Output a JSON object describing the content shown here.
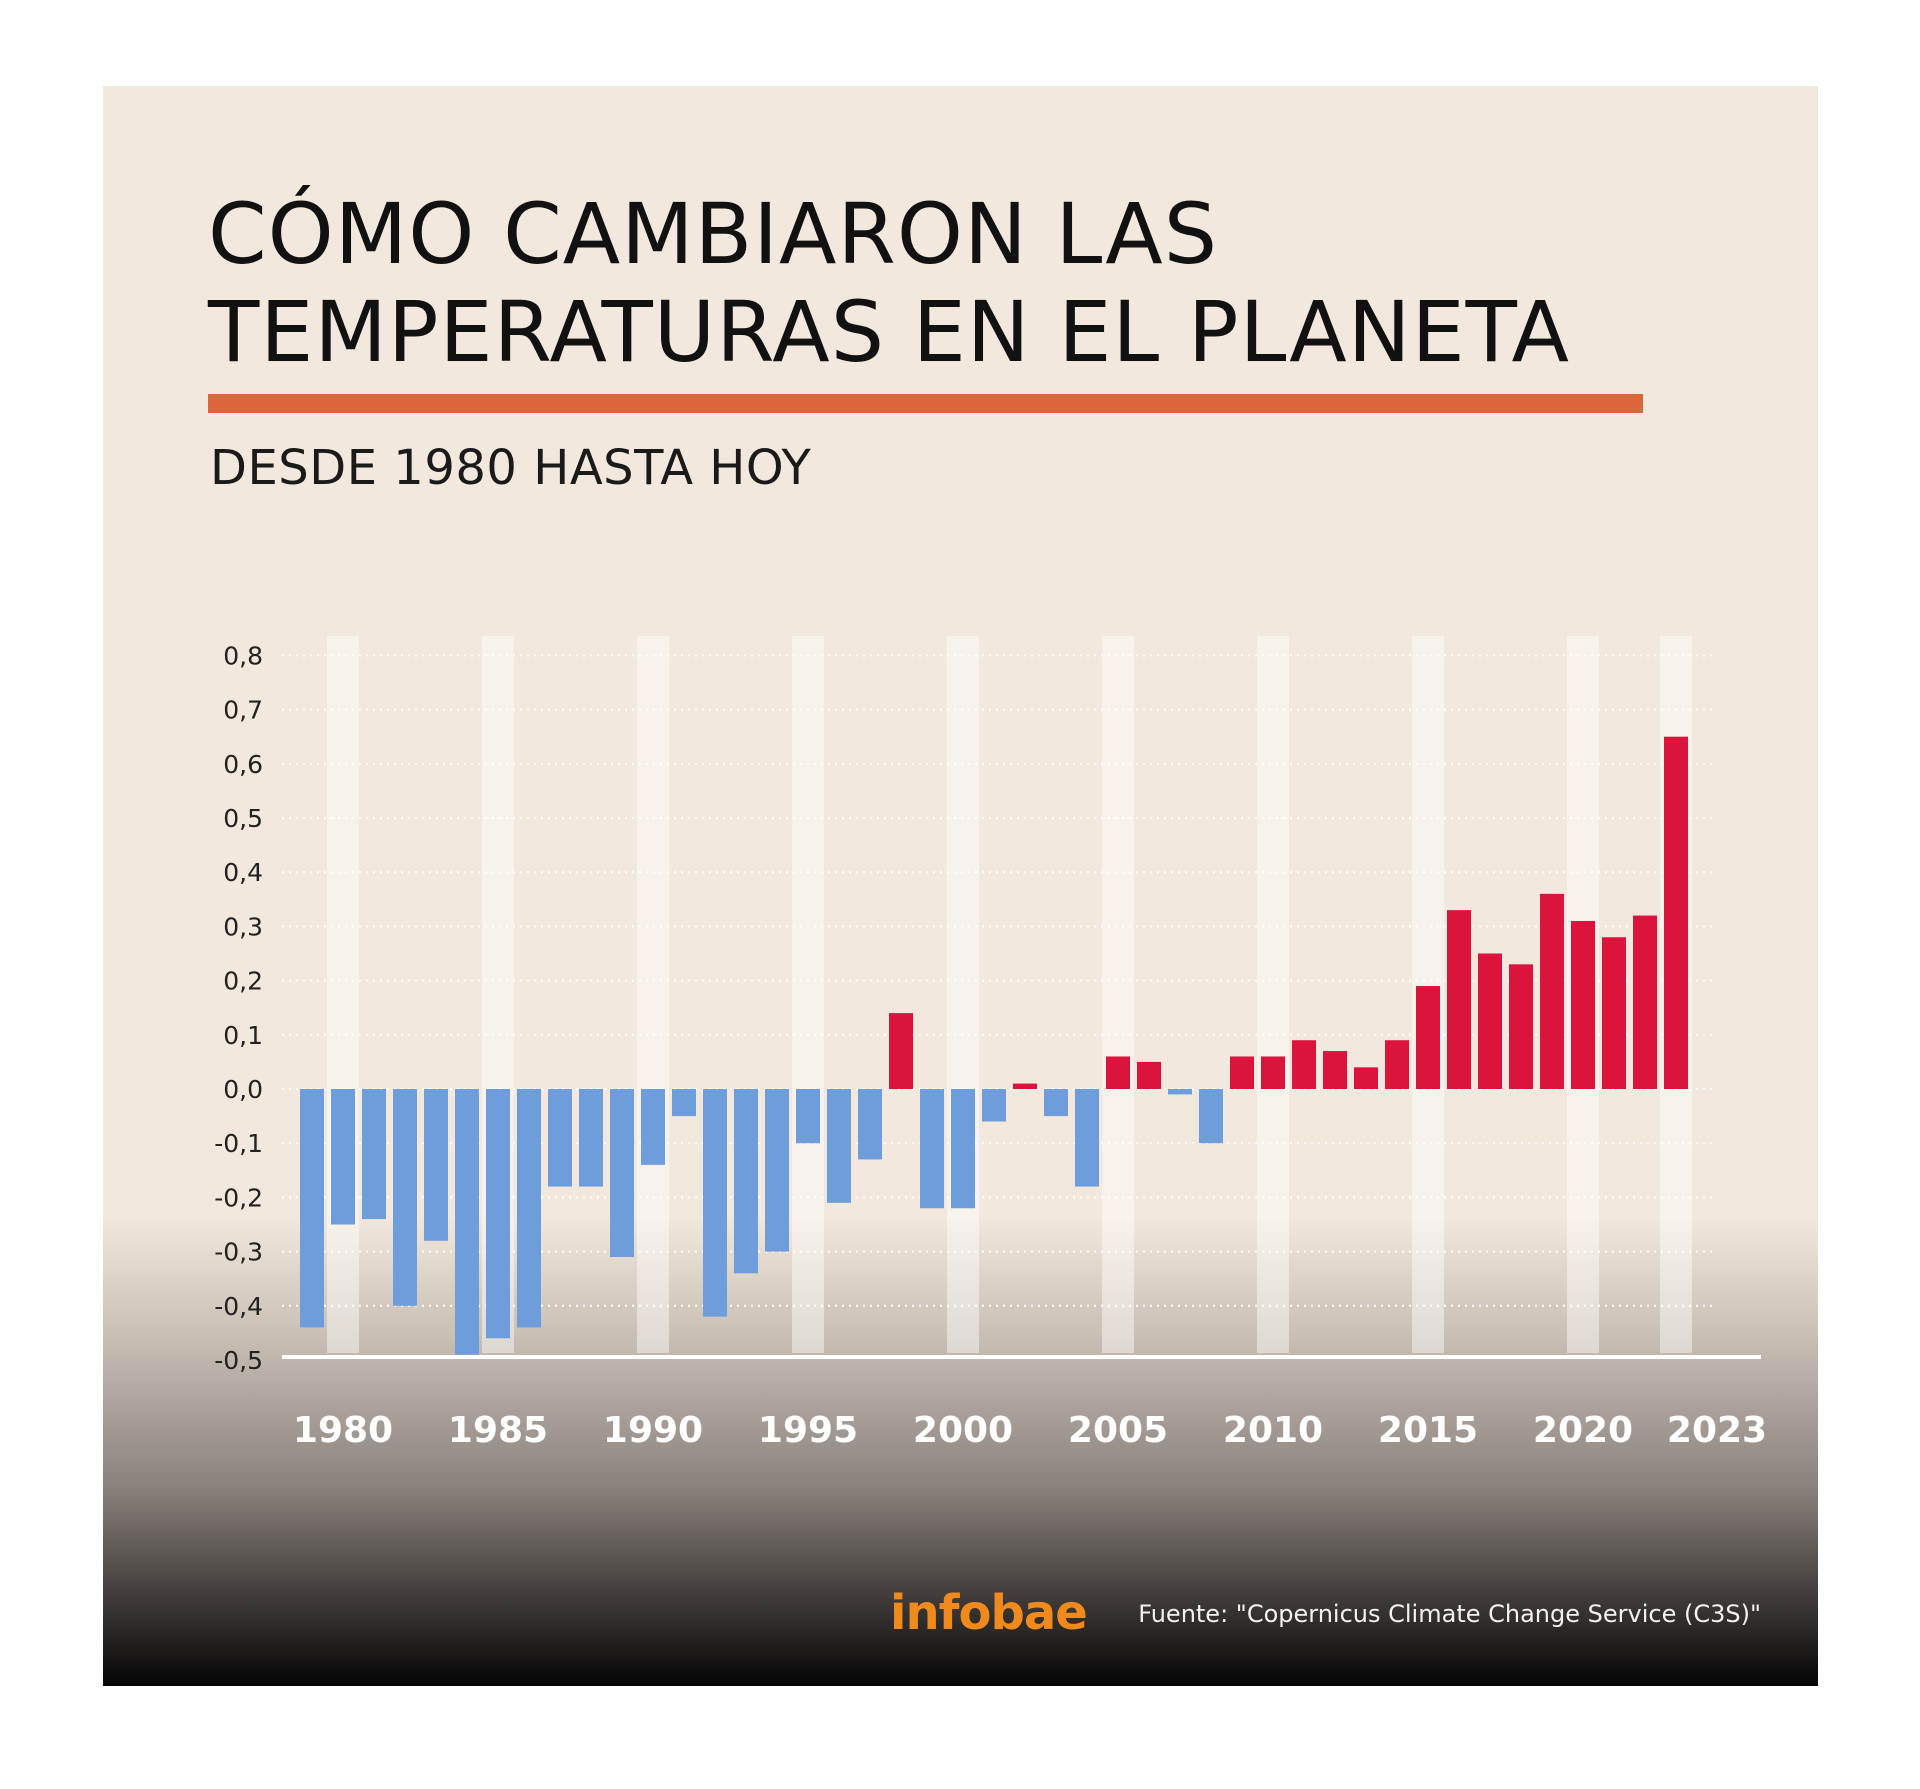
{
  "title_line1": "CÓMO CAMBIARON LAS",
  "title_line2": "TEMPERATURAS EN EL PLANETA",
  "subtitle": "DESDE 1980 HASTA HOY",
  "logo": "infobae",
  "source": "Fuente: \"Copernicus Climate Change Service (C3S)\"",
  "colors": {
    "positive": "#dc143c",
    "negative": "#6e9ddb",
    "accent_rule": "#dc653c",
    "background": "#f2e8dd"
  },
  "chart_data": {
    "type": "bar",
    "title": "CÓMO CAMBIARON LAS TEMPERATURAS EN EL PLANETA",
    "subtitle": "DESDE 1980 HASTA HOY",
    "categories": [
      1979,
      1980,
      1981,
      1982,
      1983,
      1984,
      1985,
      1986,
      1987,
      1988,
      1989,
      1990,
      1991,
      1992,
      1993,
      1994,
      1995,
      1996,
      1997,
      1998,
      1999,
      2000,
      2001,
      2002,
      2003,
      2004,
      2005,
      2006,
      2007,
      2008,
      2009,
      2010,
      2011,
      2012,
      2013,
      2014,
      2015,
      2016,
      2017,
      2018,
      2019,
      2020,
      2021,
      2022,
      2023
    ],
    "values": [
      -0.44,
      -0.25,
      -0.24,
      -0.4,
      -0.28,
      -0.49,
      -0.46,
      -0.44,
      -0.18,
      -0.18,
      -0.31,
      -0.14,
      -0.05,
      -0.42,
      -0.34,
      -0.3,
      -0.1,
      -0.21,
      -0.13,
      0.14,
      -0.22,
      -0.22,
      -0.06,
      0.01,
      -0.05,
      -0.18,
      0.06,
      0.05,
      -0.01,
      -0.1,
      0.06,
      0.06,
      0.09,
      0.07,
      0.04,
      0.09,
      0.19,
      0.33,
      0.25,
      0.23,
      0.36,
      0.31,
      0.28,
      0.32,
      0.65
    ],
    "xtick_labels": [
      "1980",
      "1985",
      "1990",
      "1995",
      "2000",
      "2005",
      "2010",
      "2015",
      "2020",
      "2023"
    ],
    "ytick_labels": [
      "0,8",
      "0,7",
      "0,6",
      "0,5",
      "0,4",
      "0,3",
      "0,2",
      "0,1",
      "0,0",
      "-0,1",
      "-0,2",
      "-0,3",
      "-0,4",
      "-0,5"
    ],
    "ylim": [
      -0.5,
      0.8
    ],
    "xlabel": "",
    "ylabel": "",
    "grid": "horizontal dotted",
    "legend": "none"
  }
}
